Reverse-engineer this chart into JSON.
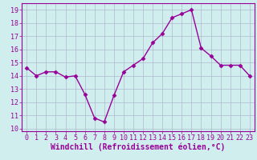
{
  "x": [
    0,
    1,
    2,
    3,
    4,
    5,
    6,
    7,
    8,
    9,
    10,
    11,
    12,
    13,
    14,
    15,
    16,
    17,
    18,
    19,
    20,
    21,
    22,
    23
  ],
  "y": [
    14.6,
    14.0,
    14.3,
    14.3,
    13.9,
    14.0,
    12.6,
    10.8,
    10.5,
    12.5,
    14.3,
    14.8,
    15.3,
    16.5,
    17.2,
    18.4,
    18.7,
    19.0,
    16.1,
    15.5,
    14.8,
    14.8,
    14.8,
    14.0
  ],
  "line_color": "#990099",
  "marker": "D",
  "marker_size": 2.5,
  "linewidth": 1.0,
  "xlabel": "Windchill (Refroidissement éolien,°C)",
  "xlabel_fontsize": 7.0,
  "ylim": [
    9.8,
    19.5
  ],
  "xlim": [
    -0.5,
    23.5
  ],
  "yticks": [
    10,
    11,
    12,
    13,
    14,
    15,
    16,
    17,
    18,
    19
  ],
  "xticks": [
    0,
    1,
    2,
    3,
    4,
    5,
    6,
    7,
    8,
    9,
    10,
    11,
    12,
    13,
    14,
    15,
    16,
    17,
    18,
    19,
    20,
    21,
    22,
    23
  ],
  "background_color": "#d0eeee",
  "grid_color": "#b0b8cc",
  "tick_fontsize": 6.0
}
